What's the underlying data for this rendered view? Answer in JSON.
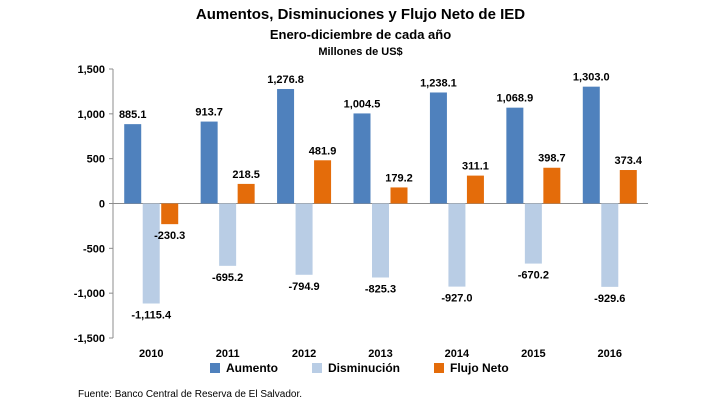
{
  "chart_data": {
    "type": "bar",
    "title": "Aumentos, Disminuciones y Flujo Neto de IED",
    "subtitle": "Enero-diciembre de cada año",
    "unit_label": "Millones de US$",
    "categories": [
      "2010",
      "2011",
      "2012",
      "2013",
      "2014",
      "2015",
      "2016"
    ],
    "series": [
      {
        "name": "Aumento",
        "color": "#4f81bd",
        "values": [
          885.1,
          913.7,
          1276.8,
          1004.5,
          1238.1,
          1068.9,
          1303.0
        ],
        "labels": [
          "885.1",
          "913.7",
          "1,276.8",
          "1,004.5",
          "1,238.1",
          "1,068.9",
          "1,303.0"
        ]
      },
      {
        "name": "Disminución",
        "color": "#b9cde5",
        "values": [
          -1115.4,
          -695.2,
          -794.9,
          -825.3,
          -927.0,
          -670.2,
          -929.6
        ],
        "labels": [
          "-1,115.4",
          "-695.2",
          "-794.9",
          "-825.3",
          "-927.0",
          "-670.2",
          "-929.6"
        ]
      },
      {
        "name": "Flujo Neto",
        "color": "#e46c0a",
        "values": [
          -230.3,
          218.5,
          481.9,
          179.2,
          311.1,
          398.7,
          373.4
        ],
        "labels": [
          "-230.3",
          "218.5",
          "481.9",
          "179.2",
          "311.1",
          "398.7",
          "373.4"
        ]
      }
    ],
    "ylim": [
      -1500,
      1500
    ],
    "yticks": [
      1500,
      1000,
      500,
      0,
      -500,
      -1000,
      -1500
    ],
    "ytick_labels": [
      "1,500",
      "1,000",
      "500",
      "0",
      "-500",
      "-1,000",
      "-1,500"
    ],
    "grid": false,
    "legend_position": "bottom"
  },
  "source": "Fuente: Banco Central de Reserva de El Salvador."
}
